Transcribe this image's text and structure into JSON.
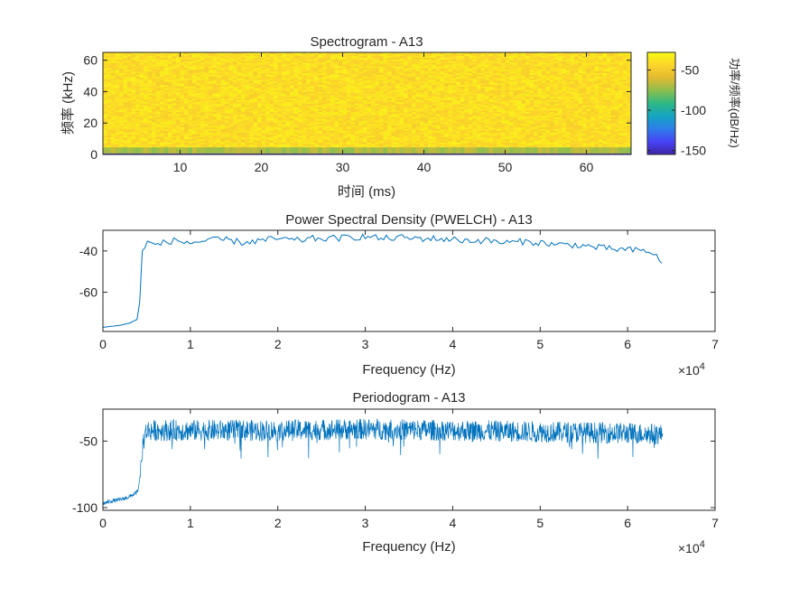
{
  "colors": {
    "line": "#0072BD",
    "axis": "#262626",
    "colormap": [
      "#3E26A8",
      "#4743F4",
      "#2F7CEA",
      "#14A5C1",
      "#2DB885",
      "#8CBE4F",
      "#E1BA31",
      "#FCD42A",
      "#F9FB15"
    ]
  },
  "chart_data": [
    {
      "type": "heatmap",
      "title": "Spectrogram - A13",
      "xlabel": "时间 (ms)",
      "ylabel": "频率 (kHz)",
      "xlim": [
        0.5,
        65.5
      ],
      "ylim": [
        0,
        65
      ],
      "xticks": [
        "10",
        "20",
        "30",
        "40",
        "50",
        "60"
      ],
      "yticks": [
        "0",
        "20",
        "40",
        "60"
      ],
      "colorbar": {
        "label": "功率/频率(dB/Hz)",
        "range": [
          -155,
          -28
        ],
        "ticks": [
          "-50",
          "-100",
          "-150"
        ]
      },
      "bands": [
        {
          "freq_khz": [
            0,
            0.6
          ],
          "level_db": -150
        },
        {
          "freq_khz": [
            0.6,
            4.5
          ],
          "level_db": -70
        },
        {
          "freq_khz": [
            4.5,
            65
          ],
          "level_db": -40
        }
      ]
    },
    {
      "type": "line",
      "title": "Power Spectral Density (PWELCH) - A13",
      "xlabel": "Frequency (Hz)",
      "x_exponent": "×10^4",
      "xlim": [
        0,
        70000
      ],
      "ylim": [
        -79,
        -30
      ],
      "xticks": [
        "0",
        "1",
        "2",
        "3",
        "4",
        "5",
        "6",
        "7"
      ],
      "yticks": [
        "-40",
        "-60"
      ],
      "series": [
        {
          "x": [
            0,
            1000,
            2000,
            3000,
            4000,
            4200,
            4500,
            5000,
            6000,
            8000,
            10000,
            12000,
            14000,
            16000,
            18000,
            20000,
            22000,
            24000,
            26000,
            28000,
            30000,
            32000,
            34000,
            36000,
            38000,
            40000,
            42000,
            44000,
            46000,
            48000,
            50000,
            52000,
            54000,
            56000,
            58000,
            60000,
            62000,
            63000,
            64000
          ],
          "y": [
            -77,
            -76.5,
            -76,
            -75,
            -73,
            -65,
            -40,
            -36,
            -37,
            -35,
            -36,
            -35,
            -34.5,
            -36,
            -35,
            -34,
            -35,
            -34,
            -34,
            -33.5,
            -33,
            -34,
            -33.5,
            -34,
            -34,
            -34.5,
            -35,
            -35,
            -36,
            -35.5,
            -36,
            -37,
            -37,
            -38,
            -39,
            -39.5,
            -40,
            -41,
            -47
          ]
        }
      ]
    },
    {
      "type": "line",
      "title": "Periodogram - A13",
      "xlabel": "Frequency (Hz)",
      "x_exponent": "×10^4",
      "xlim": [
        0,
        70000
      ],
      "ylim": [
        -102,
        -26
      ],
      "xticks": [
        "0",
        "1",
        "2",
        "3",
        "4",
        "5",
        "6",
        "7"
      ],
      "yticks": [
        "-50",
        "-100"
      ],
      "series": [
        {
          "x": [
            0,
            1000,
            2000,
            3000,
            4000,
            4300,
            4600,
            5000,
            10000,
            20000,
            30000,
            40000,
            50000,
            60000,
            64000
          ],
          "y": [
            -97,
            -95,
            -94,
            -92,
            -88,
            -75,
            -50,
            -42,
            -42,
            -42,
            -41,
            -42,
            -43,
            -44,
            -45
          ],
          "noise_db": 8
        }
      ]
    }
  ]
}
